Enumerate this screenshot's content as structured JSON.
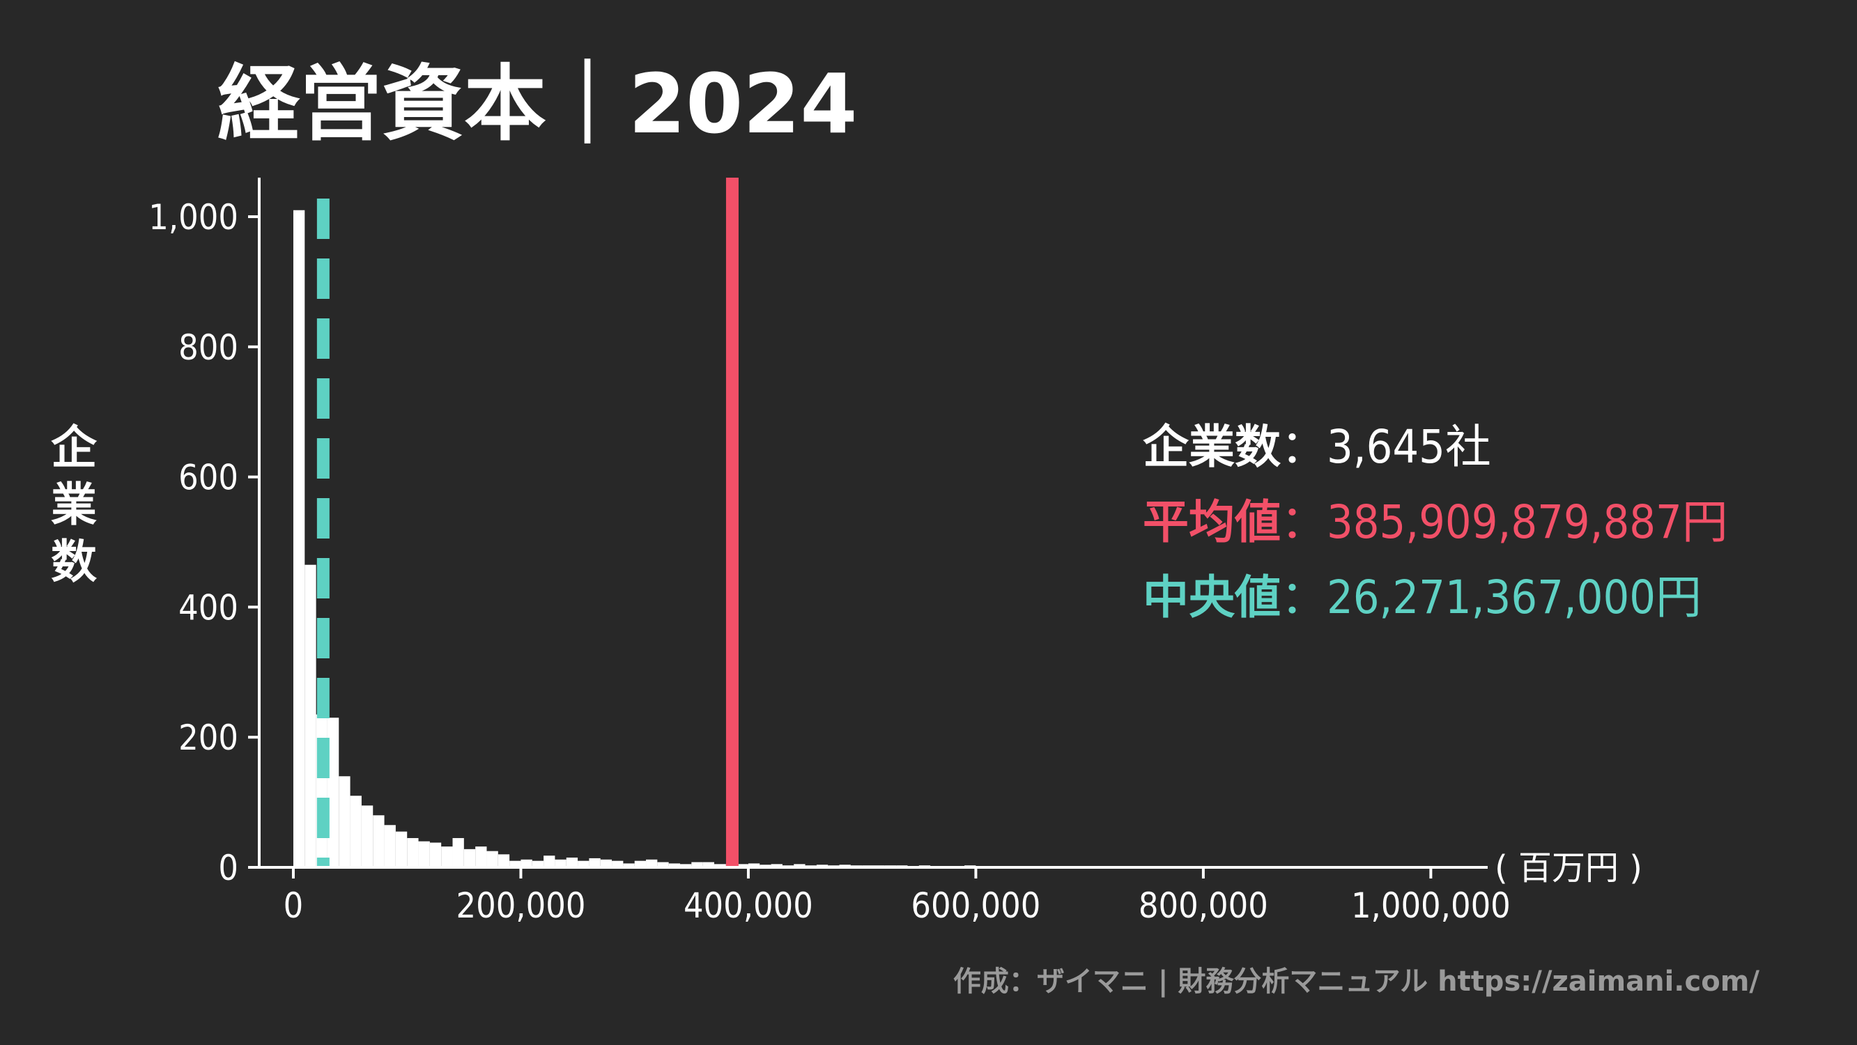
{
  "chart_data": {
    "type": "bar",
    "title": "経営資本｜2024",
    "ylabel": "企業数",
    "xlabel": "",
    "x_unit": "( 百万円 )",
    "xlim": [
      -30000,
      1050000
    ],
    "ylim": [
      0,
      1060
    ],
    "x_ticks": [
      0,
      200000,
      400000,
      600000,
      800000,
      1000000
    ],
    "x_tick_labels": [
      "0",
      "200,000",
      "400,000",
      "600,000",
      "800,000",
      "1,000,000"
    ],
    "y_ticks": [
      0,
      200,
      400,
      600,
      800,
      1000
    ],
    "y_tick_labels": [
      "0",
      "200",
      "400",
      "600",
      "800",
      "1,000"
    ],
    "bin_width": 10000,
    "bin_start": 0,
    "values": [
      1010,
      465,
      235,
      230,
      140,
      110,
      95,
      80,
      65,
      55,
      45,
      40,
      38,
      32,
      45,
      28,
      32,
      25,
      20,
      10,
      12,
      10,
      18,
      12,
      15,
      10,
      14,
      12,
      10,
      6,
      10,
      12,
      8,
      6,
      5,
      8,
      8,
      5,
      5,
      5,
      6,
      4,
      5,
      3,
      5,
      3,
      4,
      3,
      4,
      3,
      3,
      3,
      3,
      3,
      2,
      3,
      2,
      2,
      2,
      3,
      2,
      2,
      2,
      2,
      2,
      1,
      2,
      1,
      2,
      1,
      2,
      2,
      1,
      2,
      1,
      2,
      1,
      1,
      1,
      1,
      1,
      1,
      2,
      1,
      1,
      1,
      1,
      1,
      1,
      1,
      1,
      1,
      1,
      1,
      1,
      1,
      1,
      1,
      1,
      1
    ],
    "mean_line": {
      "x": 385909.879887,
      "color": "#f25068",
      "style": "solid"
    },
    "median_line": {
      "x": 26271.367,
      "color": "#5ed1c3",
      "style": "dashed"
    },
    "bar_color": "#ffffff",
    "grid": false,
    "legend": "none"
  },
  "stats": {
    "count_label": "企業数",
    "count_value": "3,645社",
    "mean_label": "平均値",
    "mean_value": "385,909,879,887円",
    "median_label": "中央値",
    "median_value": "26,271,367,000円",
    "separator": "：",
    "colors": {
      "count": "#ffffff",
      "mean": "#f25068",
      "median": "#5ed1c3"
    }
  },
  "credit": "作成：ザイマニ | 財務分析マニュアル https://zaimani.com/"
}
